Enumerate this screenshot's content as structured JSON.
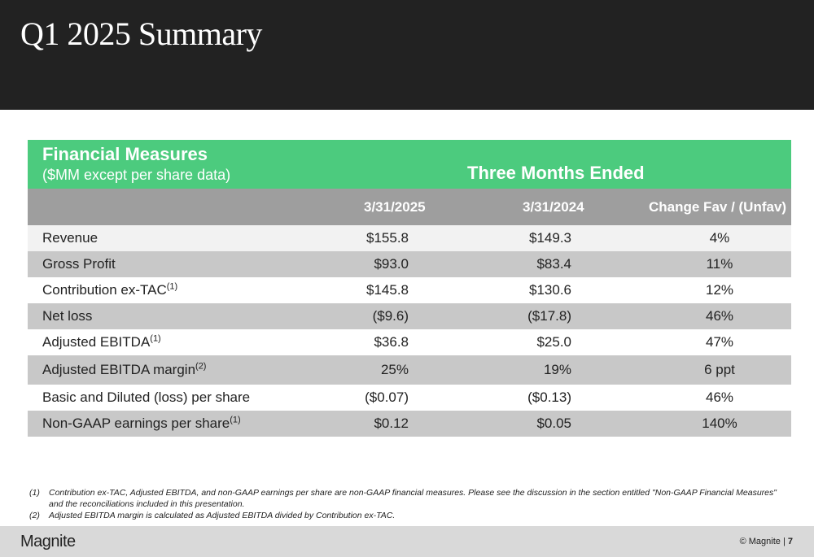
{
  "header": {
    "title": "Q1 2025 Summary",
    "bg_color": "#222222"
  },
  "table": {
    "title": "Financial Measures",
    "subtitle": "($MM except per share data)",
    "period_header": "Three Months Ended",
    "accent_color": "#4ccb7e",
    "columns": [
      "3/31/2025",
      "3/31/2024",
      "Change Fav / (Unfav)"
    ],
    "rows": [
      {
        "label": "Revenue",
        "sup": "",
        "v2025": "$155.8",
        "v2024": "$149.3",
        "change": "4%"
      },
      {
        "label": "Gross Profit",
        "sup": "",
        "v2025": "$93.0",
        "v2024": "$83.4",
        "change": "11%"
      },
      {
        "label": "Contribution ex-TAC",
        "sup": "(1)",
        "v2025": "$145.8",
        "v2024": "$130.6",
        "change": "12%"
      },
      {
        "label": "Net loss",
        "sup": "",
        "v2025": "($9.6)",
        "v2024": "($17.8)",
        "change": "46%"
      },
      {
        "label": "Adjusted EBITDA",
        "sup": "(1)",
        "v2025": "$36.8",
        "v2024": "$25.0",
        "change": "47%"
      },
      {
        "label": "Adjusted EBITDA margin",
        "sup": "(2)",
        "v2025": "25%",
        "v2024": "19%",
        "change": "6 ppt"
      },
      {
        "label": "Basic and Diluted (loss) per share",
        "sup": "",
        "v2025": "($0.07)",
        "v2024": "($0.13)",
        "change": "46%"
      },
      {
        "label": "Non-GAAP earnings per share",
        "sup": "(1)",
        "v2025": "$0.12",
        "v2024": "$0.05",
        "change": "140%"
      }
    ]
  },
  "footnotes": [
    {
      "marker": "(1)",
      "text": "Contribution ex-TAC, Adjusted EBITDA, and non-GAAP earnings per share are non-GAAP financial measures. Please see the discussion in the section entitled \"Non-GAAP Financial Measures\" and the reconciliations included in this presentation."
    },
    {
      "marker": "(2)",
      "text": "Adjusted EBITDA margin is calculated as Adjusted EBITDA divided by Contribution ex-TAC."
    }
  ],
  "footer": {
    "logo": "Magnite",
    "copyright": "© Magnite |",
    "page": "7"
  }
}
